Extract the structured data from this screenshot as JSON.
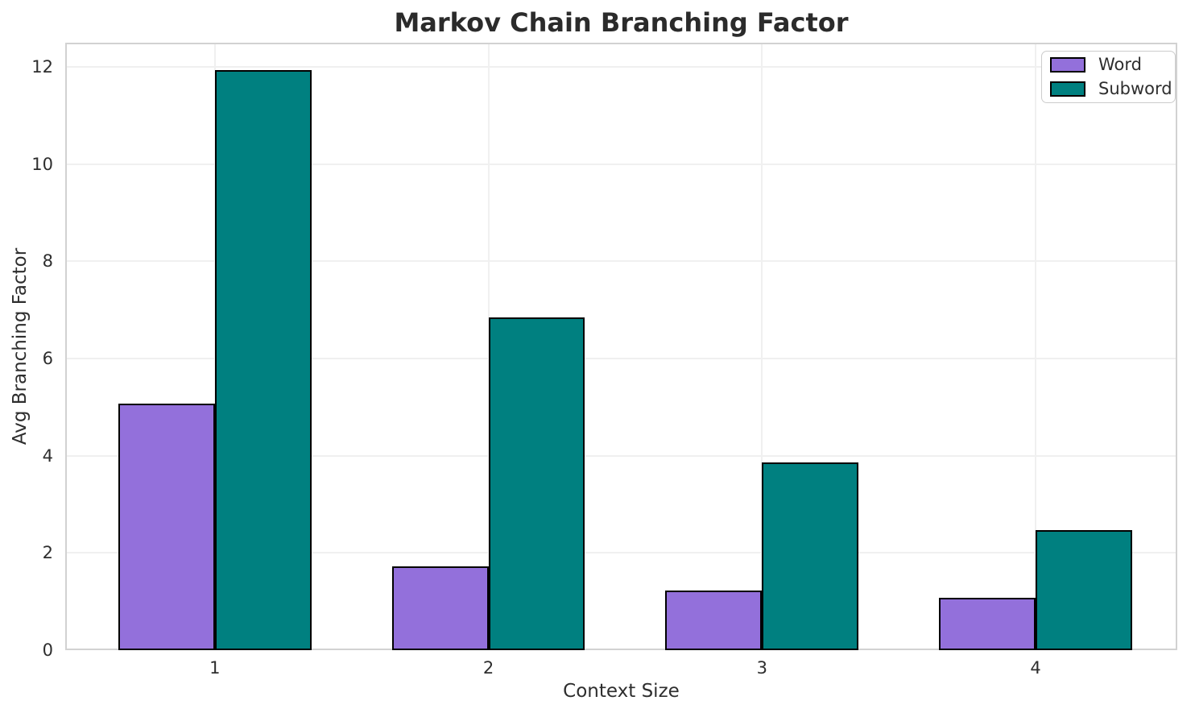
{
  "chart_data": {
    "type": "bar",
    "title": "Markov Chain Branching Factor",
    "xlabel": "Context Size",
    "ylabel": "Avg Branching Factor",
    "categories": [
      "1",
      "2",
      "3",
      "4"
    ],
    "series": [
      {
        "name": "Word",
        "color": "#9370DB",
        "values": [
          5.08,
          1.72,
          1.22,
          1.07
        ]
      },
      {
        "name": "Subword",
        "color": "#008080",
        "values": [
          11.93,
          6.85,
          3.86,
          2.47
        ]
      }
    ],
    "ylim": [
      0,
      12.5
    ],
    "yticks": [
      0,
      2,
      4,
      6,
      8,
      10,
      12
    ],
    "bar_edge_color": "#000000",
    "grid": true,
    "grid_color": "#f0f0f0",
    "spine_color": "#d2d2d2",
    "text_color": "#2e2e2e",
    "legend": {
      "position": "upper right",
      "entries": [
        "Word",
        "Subword"
      ]
    }
  }
}
